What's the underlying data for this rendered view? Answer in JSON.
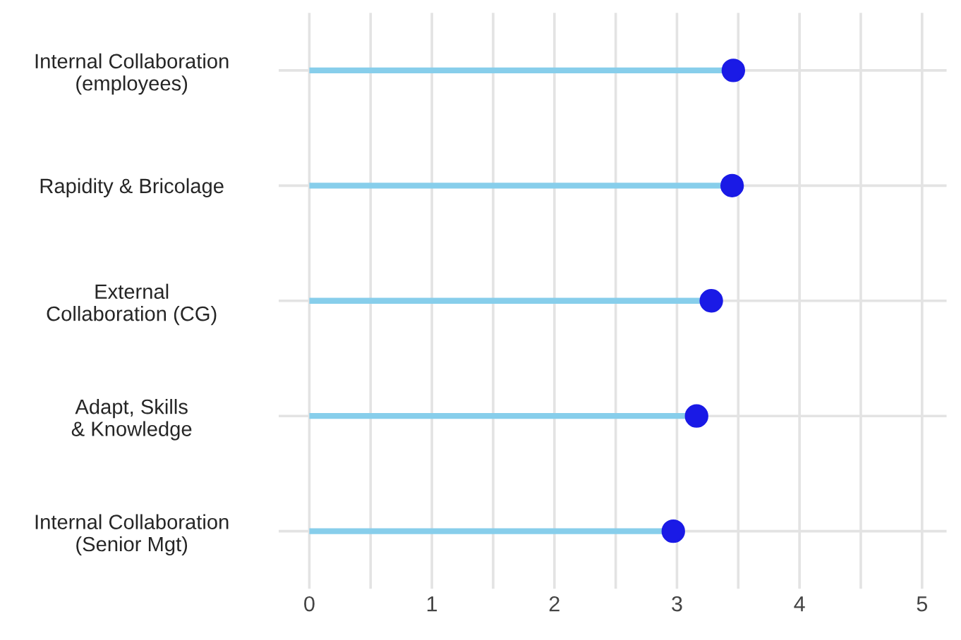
{
  "chart_data": {
    "type": "lollipop",
    "orientation": "horizontal",
    "categories": [
      "Internal Collaboration\n(employees)",
      "Rapidity & Bricolage",
      "External\nCollaboration (CG)",
      "Adapt, Skills\n& Knowledge",
      "Internal Collaboration\n(Senior Mgt)"
    ],
    "series": [
      {
        "color": "#1a1ae6",
        "values": [
          3.46,
          3.45,
          3.28,
          3.16,
          2.97
        ]
      }
    ],
    "xlim": [
      -0.25,
      5.2
    ],
    "xticks": [
      0,
      {
        "value": 0.5,
        "label": null
      },
      1,
      {
        "value": 1.5,
        "label": null
      },
      2,
      {
        "value": 2.5,
        "label": null
      },
      3,
      {
        "value": 3.5,
        "label": null
      },
      4,
      {
        "value": 4.5,
        "label": null
      },
      5
    ],
    "grid": true,
    "marker": "circle",
    "legend": false
  }
}
